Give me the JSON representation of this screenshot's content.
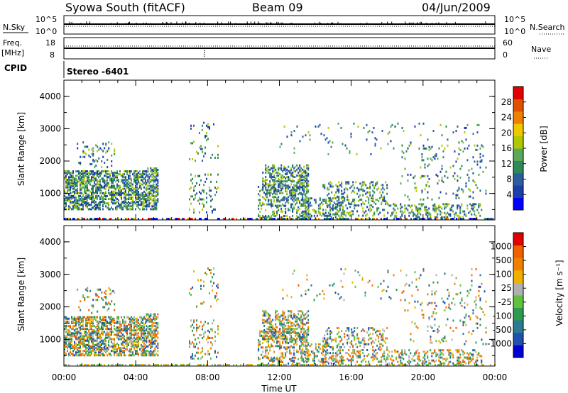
{
  "header": {
    "station": "Syowa South (fitACF)",
    "beam": "Beam 09",
    "date": "04/Jun/2009"
  },
  "left_labels": {
    "nsky": "N.Sky",
    "freq": "Freq.",
    "freq_unit": "[MHz]",
    "cpid": "CPID"
  },
  "right_labels": {
    "nsearch": "N.Search",
    "nave": "Nave"
  },
  "scale_labels": {
    "nsky_top": "10^5",
    "nsky_bottom": "10^0",
    "freq_top": "18",
    "freq_bottom": "8",
    "nave_top": "60",
    "nave_bottom": "0",
    "search_top": "10^5",
    "search_bottom": "10^0"
  },
  "cpid_text": "Stereo -6401",
  "colors": {
    "power_scale": [
      "#0000ff",
      "#1a3fa8",
      "#2c5e9f",
      "#2e8b57",
      "#5aa85a",
      "#b0c800",
      "#f0c800",
      "#f08000",
      "#e05000",
      "#e00000"
    ],
    "velocity_scale": [
      "#0000d0",
      "#2050b0",
      "#2a7a90",
      "#2e9a50",
      "#60c040",
      "#b0b0b0",
      "#f0b000",
      "#f08000",
      "#f06000",
      "#e00000"
    ]
  },
  "chart_data": [
    {
      "type": "heatmap",
      "name": "power",
      "ylabel": "Slant Range [km]",
      "ylim": [
        180,
        4500
      ],
      "yticks": [
        "1000",
        "2000",
        "3000",
        "4000"
      ],
      "colorbar_label": "Power [dB]",
      "colorbar_ticks": [
        "4",
        "8",
        "12",
        "16",
        "20",
        "24",
        "28"
      ],
      "clim": [
        0,
        32
      ]
    },
    {
      "type": "heatmap",
      "name": "velocity",
      "ylabel": "Slant Range [km]",
      "ylim": [
        180,
        4500
      ],
      "yticks": [
        "1000",
        "2000",
        "3000",
        "4000"
      ],
      "colorbar_label": "Velocity [m s⁻¹]",
      "colorbar_ticks": [
        "1000",
        "500",
        "100",
        "25",
        "-25",
        "-100",
        "-500",
        "-1000"
      ]
    }
  ],
  "xaxis": {
    "label": "Time UT",
    "ticks": [
      "00:00",
      "04:00",
      "08:00",
      "12:00",
      "16:00",
      "20:00",
      "00:00"
    ]
  }
}
